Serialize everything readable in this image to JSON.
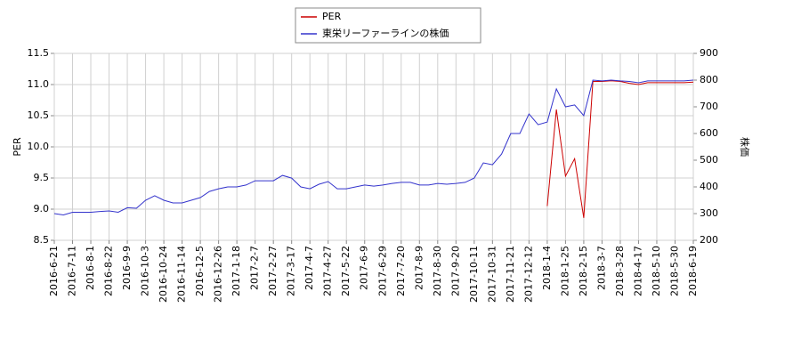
{
  "chart_data": {
    "type": "line",
    "y_label": "PER",
    "y2_label": "株価",
    "categories": [
      "2016-6-21",
      null,
      "2016-7-11",
      null,
      "2016-8-1",
      null,
      "2016-8-22",
      null,
      "2016-9-9",
      null,
      "2016-10-3",
      null,
      "2016-10-24",
      null,
      "2016-11-14",
      null,
      "2016-12-5",
      null,
      "2016-12-26",
      null,
      "2017-1-18",
      null,
      "2017-2-7",
      null,
      "2017-2-27",
      null,
      "2017-3-17",
      null,
      "2017-4-7",
      null,
      "2017-4-27",
      null,
      "2017-5-22",
      null,
      "2017-6-9",
      null,
      "2017-6-29",
      null,
      "2017-7-20",
      null,
      "2017-8-9",
      null,
      "2017-8-30",
      null,
      "2017-9-20",
      null,
      "2017-10-11",
      null,
      "2017-10-31",
      null,
      "2017-11-21",
      null,
      "2017-12-12",
      null,
      "2018-1-4",
      null,
      "2018-1-25",
      null,
      "2018-2-15",
      null,
      "2018-3-7",
      null,
      "2018-3-28",
      null,
      "2018-4-17",
      null,
      "2018-5-10",
      null,
      "2018-5-30",
      null,
      "2018-6-19"
    ],
    "series": [
      {
        "name": "PER",
        "color": "#cc0000",
        "axis": "y",
        "values": [
          null,
          null,
          null,
          null,
          null,
          null,
          null,
          null,
          null,
          null,
          null,
          null,
          null,
          null,
          null,
          null,
          null,
          null,
          null,
          null,
          null,
          null,
          null,
          null,
          null,
          null,
          null,
          null,
          null,
          null,
          null,
          null,
          null,
          null,
          null,
          null,
          null,
          null,
          null,
          null,
          null,
          null,
          null,
          null,
          null,
          null,
          null,
          null,
          null,
          null,
          null,
          null,
          null,
          null,
          9.05,
          10.6,
          9.53,
          9.81,
          8.86,
          11.05,
          11.05,
          11.06,
          11.05,
          11.02,
          11.0,
          11.03,
          11.03,
          11.03,
          11.03,
          11.03,
          11.04
        ]
      },
      {
        "name": "東栄リーファーラインの株価",
        "color": "#3333cc",
        "axis": "y2",
        "values": [
          300,
          295,
          305,
          305,
          305,
          308,
          310,
          305,
          322,
          320,
          350,
          367,
          350,
          340,
          340,
          350,
          360,
          383,
          393,
          400,
          400,
          407,
          423,
          423,
          423,
          443,
          433,
          400,
          393,
          410,
          420,
          393,
          393,
          400,
          407,
          403,
          407,
          413,
          417,
          417,
          407,
          407,
          413,
          410,
          413,
          417,
          433,
          490,
          483,
          523,
          600,
          600,
          673,
          633,
          643,
          767,
          700,
          707,
          667,
          800,
          797,
          800,
          797,
          795,
          790,
          797,
          797,
          797,
          797,
          797,
          800
        ]
      }
    ],
    "ylim": [
      8.5,
      11.5
    ],
    "yticks": [
      8.5,
      {
        "value": 9,
        "label": "9.0"
      },
      9.5,
      {
        "value": 10,
        "label": "10.0"
      },
      10.5,
      {
        "value": 11,
        "label": "11.0"
      },
      11.5
    ],
    "y2lim": [
      200,
      900
    ],
    "y2ticks": [
      200,
      300,
      400,
      500,
      600,
      700,
      800,
      900
    ],
    "grid": true
  }
}
